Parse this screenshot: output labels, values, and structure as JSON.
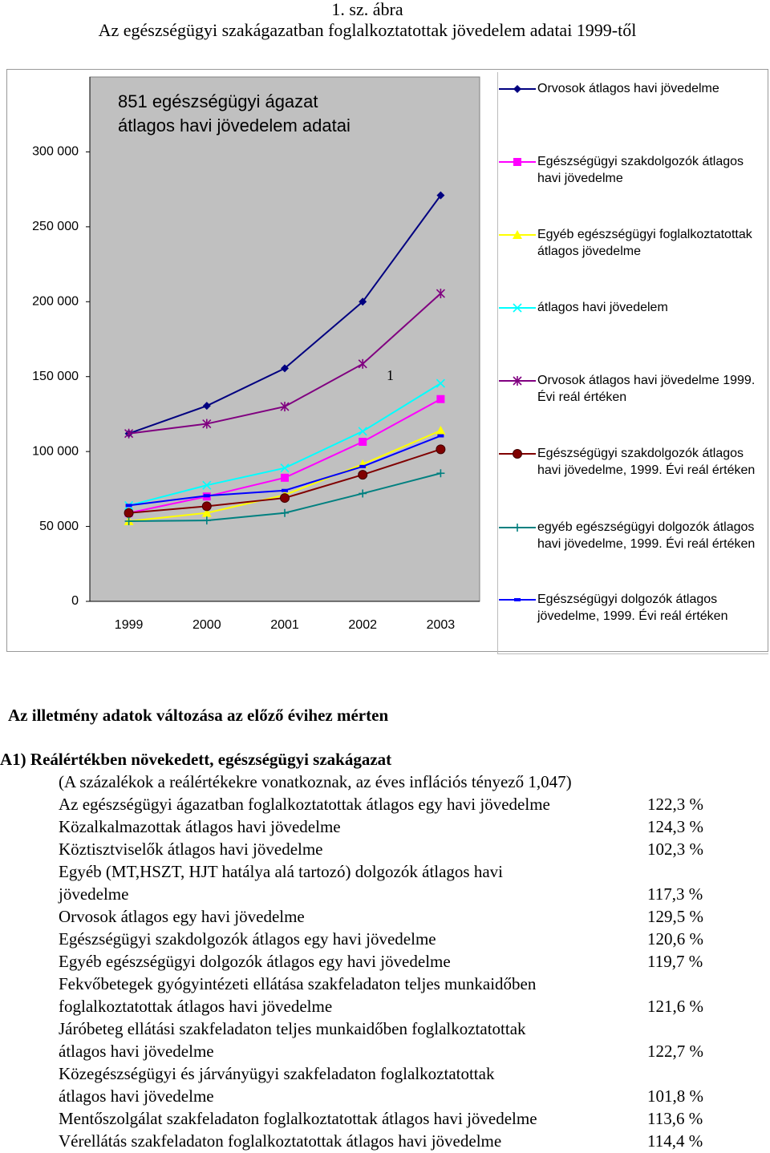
{
  "header": {
    "figure_label": "1. sz. ábra",
    "title": "Az egészségügyi szakágazatban foglalkoztatottak jövedelem adatai 1999-től"
  },
  "chart_data": {
    "type": "line",
    "title": [
      "851 egészségügyi ágazat",
      "átlagos havi jövedelem adatai"
    ],
    "annotation": "1",
    "categories": [
      "1999",
      "2000",
      "2001",
      "2002",
      "2003"
    ],
    "ylim": [
      0,
      350000
    ],
    "yticks": [
      {
        "value": 0,
        "label": "0"
      },
      {
        "value": 50000,
        "label": "50 000"
      },
      {
        "value": 100000,
        "label": "100 000"
      },
      {
        "value": 150000,
        "label": "150 000"
      },
      {
        "value": 200000,
        "label": "200 000"
      },
      {
        "value": 250000,
        "label": "250 000"
      },
      {
        "value": 300000,
        "label": "300 000"
      }
    ],
    "grid": false,
    "legend": "right",
    "series": [
      {
        "name": "Orvosok átlagos havi jövedelme",
        "color": "#000080",
        "marker": "diamond",
        "values": [
          112000,
          130500,
          155500,
          200000,
          271000
        ]
      },
      {
        "name": "Egészségügyi szakdolgozók átlagos havi jövedelme",
        "color": "#ff00ff",
        "marker": "square",
        "values": [
          59000,
          70000,
          82500,
          106500,
          135000
        ]
      },
      {
        "name": "Egyéb egészségügyi foglalkoztatottak átlagos jövedelme",
        "color": "#ffff00",
        "marker": "triangle",
        "values": [
          53500,
          59000,
          71000,
          91500,
          114000
        ]
      },
      {
        "name": "átlagos havi jövedelem",
        "color": "#00ffff",
        "marker": "x",
        "values": [
          64000,
          77500,
          89000,
          113500,
          145500
        ]
      },
      {
        "name": "Orvosok átlagos havi jövedelme 1999. Évi reál értéken",
        "color": "#800080",
        "marker": "star",
        "values": [
          112000,
          118500,
          130000,
          158500,
          205500
        ]
      },
      {
        "name": "Egészségügyi szakdolgozók átlagos havi jövedelme, 1999. Évi reál értéken",
        "color": "#800000",
        "marker": "circle",
        "values": [
          59000,
          63500,
          69000,
          84500,
          101500
        ]
      },
      {
        "name": "egyéb egészségügyi dolgozók átlagos havi jövedelme, 1999. Évi reál értéken",
        "color": "#008080",
        "marker": "plus",
        "values": [
          53500,
          54000,
          59000,
          72000,
          85500
        ]
      },
      {
        "name": "Egészségügyi dolgozók átlagos jövedelme, 1999. Évi reál értéken",
        "color": "#0000ff",
        "marker": "dash",
        "values": [
          64000,
          70500,
          74000,
          90000,
          110500
        ]
      }
    ]
  },
  "document": {
    "heading": "Az illetmény adatok változása az előző évihez mérten",
    "section": "A1) Reálértékben növekedett, egészségügyi szakágazat",
    "note": "(A százalékok a reálértékekre vonatkoznak, az éves inflációs tényező 1,047)",
    "rows": [
      {
        "lines": [
          "Az egészségügyi ágazatban foglalkoztatottak átlagos egy havi jövedelme"
        ],
        "percent": "122,3 %"
      },
      {
        "lines": [
          "Közalkalmazottak átlagos havi jövedelme"
        ],
        "percent": "124,3 %"
      },
      {
        "lines": [
          "Köztisztviselők átlagos havi jövedelme"
        ],
        "percent": "102,3 %"
      },
      {
        "lines": [
          "Egyéb (MT,HSZT, HJT hatálya alá tartozó) dolgozók átlagos havi",
          "jövedelme"
        ],
        "percent": "117,3 %"
      },
      {
        "lines": [
          "Orvosok átlagos egy havi jövedelme"
        ],
        "percent": "129,5 %"
      },
      {
        "lines": [
          "Egészségügyi szakdolgozók átlagos egy havi jövedelme"
        ],
        "percent": "120,6 %"
      },
      {
        "lines": [
          "Egyéb egészségügyi dolgozók  átlagos egy havi jövedelme"
        ],
        "percent": "119,7 %"
      },
      {
        "lines": [
          "Fekvőbetegek gyógyintézeti ellátása szakfeladaton teljes munkaidőben",
          "foglalkoztatottak átlagos havi jövedelme"
        ],
        "percent": "121,6 %"
      },
      {
        "lines": [
          "Járóbeteg ellátási szakfeladaton teljes munkaidőben foglalkoztatottak",
          "átlagos havi jövedelme"
        ],
        "percent": "122,7 %"
      },
      {
        "lines": [
          "Közegészségügyi és járványügyi szakfeladaton foglalkoztatottak",
          "átlagos havi jövedelme"
        ],
        "percent": "101,8 %"
      },
      {
        "lines": [
          "Mentőszolgálat szakfeladaton foglalkoztatottak átlagos havi jövedelme"
        ],
        "percent": "113,6 %"
      },
      {
        "lines": [
          "Vérellátás szakfeladaton foglalkoztatottak átlagos havi jövedelme"
        ],
        "percent": "114,4 %"
      }
    ]
  }
}
